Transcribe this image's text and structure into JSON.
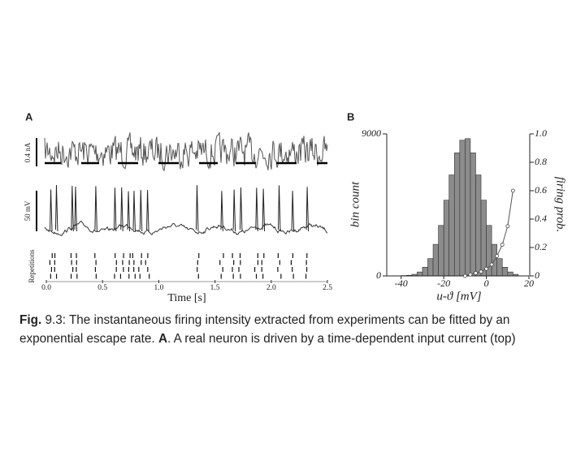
{
  "figure": {
    "panel_a": {
      "label": "A",
      "trace_labels": [
        "0.4 nA",
        "50 mV",
        "Repetitions"
      ],
      "xlabel": "Time [s]",
      "xlim": [
        0,
        2.5
      ],
      "xticks": [
        {
          "value": 0,
          "label": "0.0"
        },
        0.5,
        {
          "value": 1,
          "label": "1.0"
        },
        1.5,
        {
          "value": 2,
          "label": "2.0"
        },
        2.5
      ],
      "spike_times": [
        0.04,
        0.09,
        0.23,
        0.26,
        0.44,
        0.61,
        0.67,
        0.73,
        0.78,
        0.84,
        0.9,
        1.34,
        1.56,
        1.67,
        1.73,
        1.87,
        1.93,
        2.07,
        2.19,
        2.32
      ]
    },
    "panel_b": {
      "label": "B",
      "type": "histogram",
      "xlabel": "u-ϑ [mV]",
      "ylabel": "bin count",
      "y2label": "firing prob.",
      "bins": [
        -45,
        -42.5,
        -40,
        -37.5,
        -35,
        -32.5,
        -30,
        -27.5,
        -25,
        -22.5,
        -20,
        -17.5,
        -15,
        -12.5,
        -10,
        -7.5,
        -5,
        -2.5,
        0,
        2.5,
        5,
        7.5,
        10,
        12.5,
        15
      ],
      "counts": [
        0,
        0,
        20,
        40,
        100,
        250,
        550,
        1100,
        2000,
        3200,
        4800,
        6400,
        7800,
        8600,
        8700,
        7800,
        6400,
        4800,
        3200,
        2000,
        1100,
        550,
        250,
        100
      ],
      "color": "#8c8c8c",
      "xlim": [
        -46,
        20
      ],
      "xticks": [
        -40,
        -20,
        0,
        20
      ],
      "ylim": [
        0,
        9000
      ],
      "yticks": [
        0,
        9000
      ],
      "y2lim": [
        0,
        1
      ],
      "y2ticks": [
        0,
        0.2,
        0.4,
        0.6,
        0.8,
        {
          "value": 1,
          "label": "1.0"
        }
      ],
      "prob_x": [
        -10,
        -7.5,
        -5,
        -2.5,
        0,
        2.5,
        5,
        7.5,
        10,
        12.5
      ],
      "prob_values": [
        0,
        0.01,
        0.02,
        0.03,
        0.05,
        0.08,
        0.14,
        0.22,
        0.35,
        0.6
      ]
    }
  },
  "caption": {
    "label": "Fig.",
    "text1": " 9.3: The instantaneous firing intensity extracted from experiments can be fitted by an exponential escape rate. ",
    "panel": "A",
    "text2": ". A real neuron is driven by a time-dependent input current (top)"
  }
}
